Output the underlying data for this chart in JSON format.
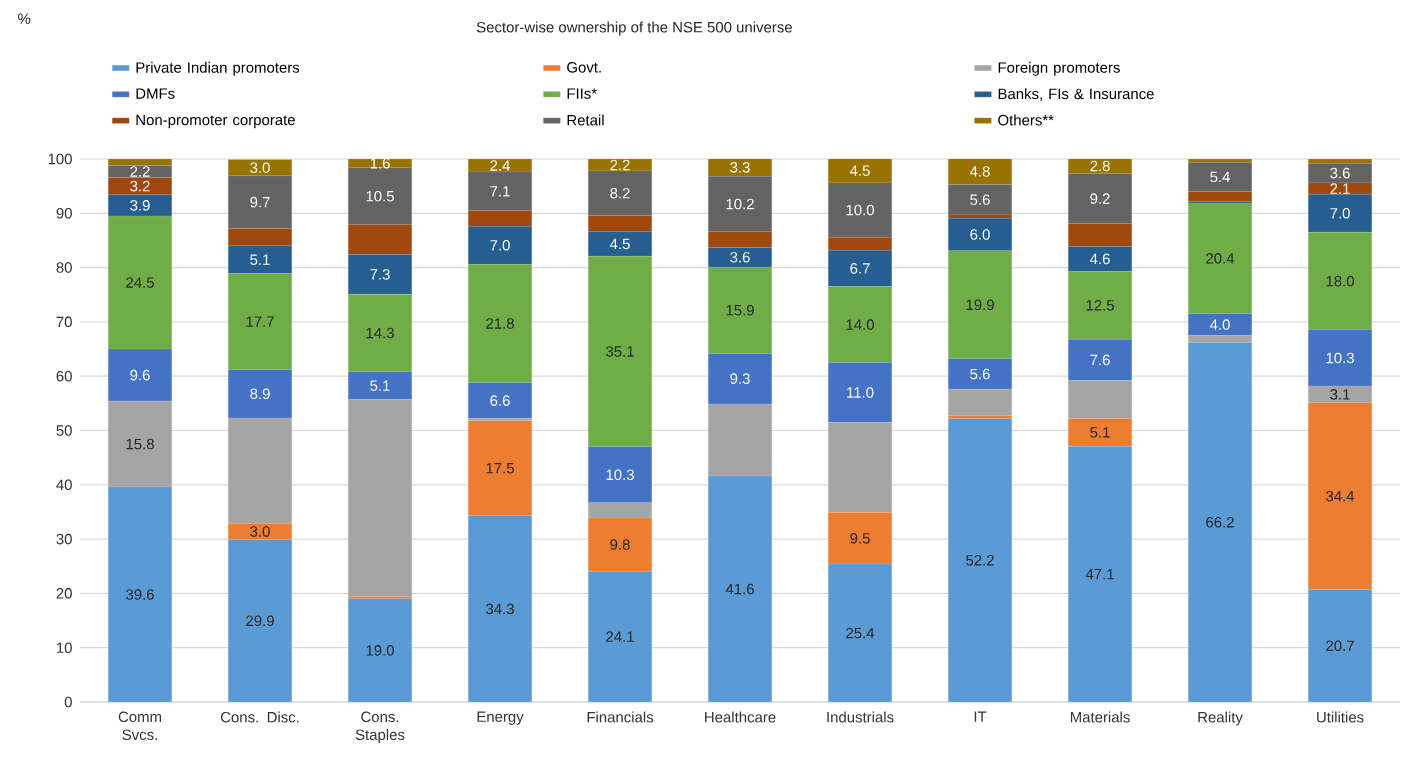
{
  "chart_data": {
    "type": "bar",
    "stacked": true,
    "title": "Sector-wise ownership of the NSE 500 universe",
    "annotations": [
      "%"
    ],
    "categories": [
      "Comm Svcs.",
      "Cons. Disc.",
      "Cons. Staples",
      "Energy",
      "Financials",
      "Healthcare",
      "Industrials",
      "IT",
      "Materials",
      "Reality",
      "Utilities"
    ],
    "ylim": [
      0,
      100
    ],
    "yticks": [
      0,
      10,
      20,
      30,
      40,
      50,
      60,
      70,
      80,
      90,
      100
    ],
    "grid": "y",
    "legend": "top",
    "series": [
      {
        "name": "Private Indian promoters",
        "color": "#5b9bd5",
        "values": [
          39.6,
          29.9,
          19.0,
          34.3,
          24.1,
          41.6,
          25.4,
          52.2,
          47.1,
          66.2,
          20.7
        ],
        "value_labels": [
          "39.6",
          "29.9",
          "19.0",
          "34.3",
          "24.1",
          "41.6",
          "25.4",
          "52.2",
          "47.1",
          "66.2",
          "20.7"
        ]
      },
      {
        "name": "Govt.",
        "color": "#ed7d31",
        "values": [
          0,
          3.0,
          0.4,
          17.5,
          9.8,
          0,
          9.5,
          0.5,
          5.1,
          0,
          34.4
        ],
        "value_labels": [
          null,
          "3.0",
          null,
          "17.5",
          "9.8",
          null,
          "9.5",
          null,
          "5.1",
          null,
          "34.4"
        ]
      },
      {
        "name": "Foreign promoters",
        "color": "#a5a5a5",
        "values": [
          15.8,
          19.4,
          36.3,
          0.4,
          2.8,
          13.3,
          16.6,
          4.9,
          7.0,
          1.3,
          3.1
        ],
        "value_labels": [
          "15.8",
          null,
          null,
          null,
          null,
          null,
          null,
          null,
          null,
          null,
          "3.1"
        ]
      },
      {
        "name": "DMFs",
        "color": "#4472c4",
        "values": [
          9.6,
          8.9,
          5.1,
          6.6,
          10.3,
          9.3,
          11.0,
          5.6,
          7.6,
          4.0,
          10.3
        ],
        "value_labels": [
          "9.6",
          "8.9",
          "5.1",
          "6.6",
          "10.3",
          "9.3",
          "11.0",
          "5.6",
          "7.6",
          "4.0",
          "10.3"
        ]
      },
      {
        "name": "FIIs*",
        "color": "#70ad47",
        "values": [
          24.5,
          17.7,
          14.3,
          21.8,
          35.1,
          15.9,
          14.0,
          19.9,
          12.5,
          20.4,
          18.0
        ],
        "value_labels": [
          "24.5",
          "17.7",
          "14.3",
          "21.8",
          "35.1",
          "15.9",
          "14.0",
          "19.9",
          "12.5",
          "20.4",
          "18.0"
        ]
      },
      {
        "name": "Banks, FIs & Insurance",
        "color": "#255e91",
        "values": [
          3.9,
          5.1,
          7.3,
          7.0,
          4.5,
          3.6,
          6.7,
          6.0,
          4.6,
          0.3,
          7.0
        ],
        "value_labels": [
          "3.9",
          "5.1",
          "7.3",
          "7.0",
          "4.5",
          "3.6",
          "6.7",
          "6.0",
          "4.6",
          null,
          "7.0"
        ]
      },
      {
        "name": "Non-promoter corporate",
        "color": "#9e480e",
        "values": [
          3.2,
          3.2,
          5.5,
          2.9,
          3.0,
          2.9,
          2.4,
          0.6,
          4.2,
          1.8,
          2.1
        ],
        "value_labels": [
          "3.2",
          null,
          null,
          null,
          null,
          null,
          null,
          null,
          null,
          null,
          "2.1"
        ]
      },
      {
        "name": "Retail",
        "color": "#636363",
        "values": [
          2.2,
          9.7,
          10.5,
          7.1,
          8.2,
          10.2,
          10.0,
          5.6,
          9.2,
          5.4,
          3.6
        ],
        "value_labels": [
          "2.2",
          "9.7",
          "10.5",
          "7.1",
          "8.2",
          "10.2",
          "10.0",
          "5.6",
          "9.2",
          "5.4",
          "3.6"
        ]
      },
      {
        "name": "Others**",
        "color": "#997300",
        "values": [
          1.2,
          3.0,
          1.6,
          2.4,
          2.2,
          3.3,
          4.5,
          4.8,
          2.8,
          0.6,
          0.8
        ],
        "value_labels": [
          null,
          "3.0",
          "1.6",
          "2.4",
          "2.2",
          "3.3",
          "4.5",
          "4.8",
          "2.8",
          null,
          null
        ]
      }
    ]
  }
}
